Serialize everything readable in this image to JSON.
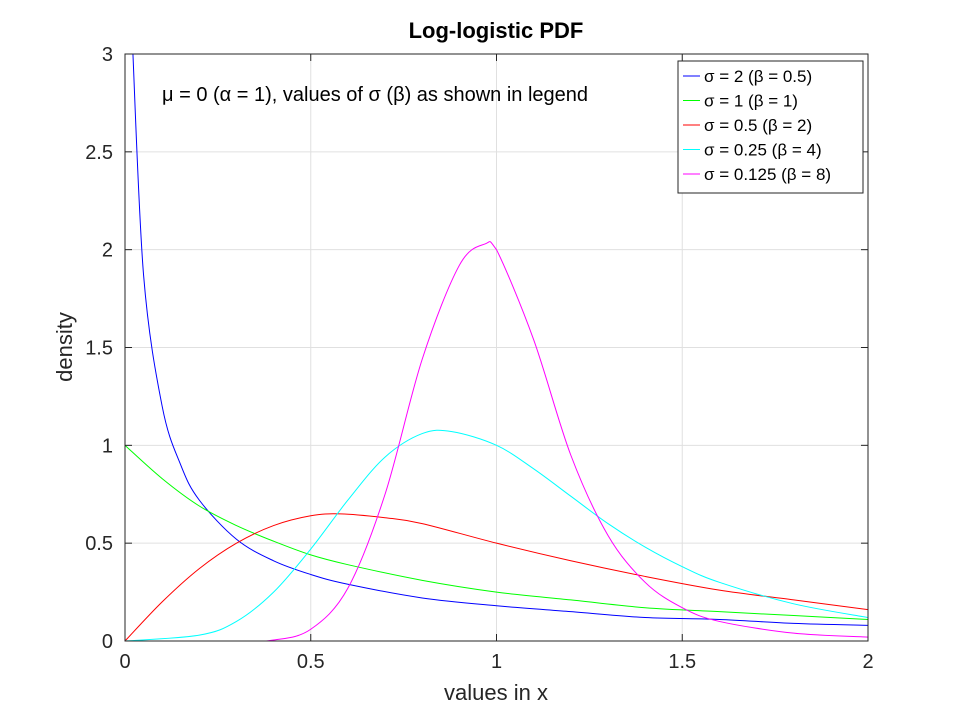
{
  "chart_data": {
    "type": "line",
    "title": "Log-logistic PDF",
    "xlabel": "values in x",
    "ylabel": "density",
    "annotation": "μ = 0 (α = 1), values of σ (β) as shown in legend",
    "xlim": [
      0,
      2
    ],
    "ylim": [
      0,
      3
    ],
    "xticks": [
      0,
      0.5,
      1,
      1.5,
      2
    ],
    "xtick_labels": [
      "0",
      "0.5",
      "1",
      "1.5",
      "2"
    ],
    "yticks": [
      0,
      0.5,
      1,
      1.5,
      2,
      2.5,
      3
    ],
    "ytick_labels": [
      "0",
      "0.5",
      "1",
      "1.5",
      "2",
      "2.5",
      "3"
    ],
    "grid": true,
    "legend_position": "top-right",
    "series": [
      {
        "name": "σ = 2 (β = 0.5)",
        "color": "#0000ff",
        "x": [
          0.02,
          0.05,
          0.1,
          0.15,
          0.2,
          0.3,
          0.4,
          0.5,
          0.6,
          0.8,
          1.0,
          1.2,
          1.4,
          1.6,
          1.8,
          2.0
        ],
        "y": [
          3.06,
          1.87,
          1.2,
          0.9,
          0.72,
          0.52,
          0.41,
          0.34,
          0.29,
          0.22,
          0.18,
          0.15,
          0.12,
          0.11,
          0.09,
          0.08
        ]
      },
      {
        "name": "σ = 1 (β = 1)",
        "color": "#00ff00",
        "x": [
          0,
          0.1,
          0.2,
          0.3,
          0.4,
          0.5,
          0.6,
          0.8,
          1.0,
          1.2,
          1.4,
          1.6,
          1.8,
          2.0
        ],
        "y": [
          1.0,
          0.83,
          0.69,
          0.59,
          0.51,
          0.44,
          0.39,
          0.31,
          0.25,
          0.21,
          0.17,
          0.15,
          0.13,
          0.11
        ]
      },
      {
        "name": "σ = 0.5 (β = 2)",
        "color": "#ff0000",
        "x": [
          0,
          0.1,
          0.2,
          0.3,
          0.4,
          0.5,
          0.58,
          0.7,
          0.8,
          1.0,
          1.2,
          1.4,
          1.6,
          1.8,
          2.0
        ],
        "y": [
          0,
          0.2,
          0.37,
          0.5,
          0.59,
          0.64,
          0.65,
          0.63,
          0.6,
          0.5,
          0.41,
          0.33,
          0.26,
          0.21,
          0.16
        ]
      },
      {
        "name": "σ = 0.25 (β = 4)",
        "color": "#00ffff",
        "x": [
          0,
          0.2,
          0.3,
          0.4,
          0.5,
          0.6,
          0.7,
          0.8,
          0.88,
          1.0,
          1.1,
          1.2,
          1.3,
          1.4,
          1.5,
          1.6,
          1.8,
          2.0
        ],
        "y": [
          0,
          0.03,
          0.1,
          0.25,
          0.47,
          0.72,
          0.94,
          1.06,
          1.07,
          1.0,
          0.88,
          0.74,
          0.6,
          0.48,
          0.38,
          0.3,
          0.19,
          0.12
        ]
      },
      {
        "name": "σ = 0.125 (β = 8)",
        "color": "#ff00ff",
        "x": [
          0,
          0.3,
          0.4,
          0.5,
          0.6,
          0.7,
          0.8,
          0.9,
          0.97,
          1.0,
          1.1,
          1.2,
          1.3,
          1.4,
          1.5,
          1.6,
          1.8,
          2.0
        ],
        "y": [
          0,
          0.0,
          0.005,
          0.06,
          0.27,
          0.75,
          1.44,
          1.92,
          2.03,
          2.0,
          1.54,
          0.95,
          0.54,
          0.3,
          0.17,
          0.1,
          0.04,
          0.02
        ]
      }
    ]
  }
}
